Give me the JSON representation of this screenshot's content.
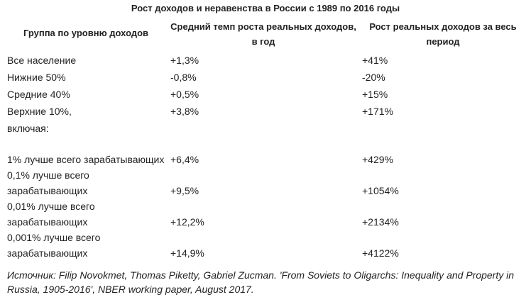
{
  "table": {
    "caption": "Рост доходов и неравенства в России с 1989 по 2016 годы",
    "headers": [
      "Группа по уровню доходов",
      "Средний темп роста реальных доходов, в год",
      "Рост реальных доходов за весь период"
    ],
    "rows": [
      {
        "group": "Все население",
        "annual": "+1,3%",
        "total": "+41%"
      },
      {
        "group": "Нижние 50%",
        "annual": "-0,8%",
        "total": "-20%"
      },
      {
        "group": "Средние 40%",
        "annual": "+0,5%",
        "total": "+15%"
      },
      {
        "group": "Верхние 10%,",
        "annual": "+3,8%",
        "total": "+171%"
      },
      {
        "group": "включая:",
        "annual": "",
        "total": ""
      },
      {
        "group": "1% лучше всего зарабатывающих",
        "annual": "+6,4%",
        "total": "+429%"
      },
      {
        "group": "0,1% лучше всего зарабатывающих",
        "annual": "+9,5%",
        "total": "+1054%"
      },
      {
        "group": "0,01% лучше всего зарабатывающих",
        "annual": "+12,2%",
        "total": "+2134%"
      },
      {
        "group": "0,001% лучше всего зарабатывающих",
        "annual": "+14,9%",
        "total": "+4122%"
      }
    ]
  },
  "source": "Источник: Filip Novokmet, Thomas Piketty, Gabriel Zucman. 'From Soviets to Oligarchs: Inequality and Property in Russia, 1905-2016', NBER working paper, August 2017."
}
